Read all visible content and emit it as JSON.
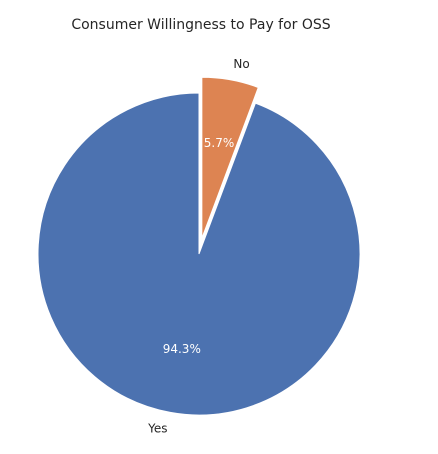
{
  "chart_data": {
    "type": "pie",
    "title": "Consumer Willingness to Pay for OSS",
    "slices": [
      {
        "label": "No",
        "value": 5.7,
        "pct_label": "5.7%",
        "color": "#dd8452",
        "exploded": true
      },
      {
        "label": "Yes",
        "value": 94.3,
        "pct_label": "94.3%",
        "color": "#4c72b0",
        "exploded": false
      }
    ],
    "start_angle_deg": 90,
    "direction": "clockwise"
  }
}
